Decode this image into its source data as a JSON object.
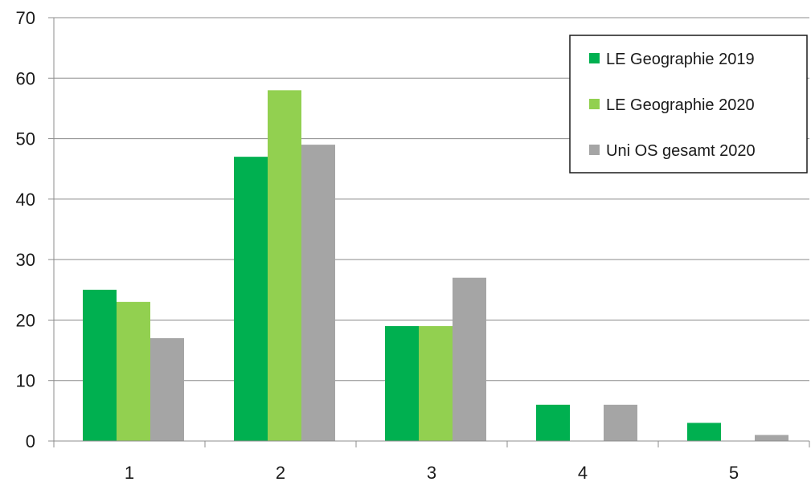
{
  "chart_data": {
    "type": "bar",
    "categories": [
      "1",
      "2",
      "3",
      "4",
      "5"
    ],
    "series": [
      {
        "name": "LE Geographie 2019",
        "color": "#00b050",
        "values": [
          25,
          47,
          19,
          6,
          3
        ]
      },
      {
        "name": "LE Geographie 2020",
        "color": "#92d050",
        "values": [
          23,
          58,
          19,
          0,
          0
        ]
      },
      {
        "name": "Uni OS gesamt 2020",
        "color": "#a5a5a5",
        "values": [
          17,
          49,
          27,
          6,
          1
        ]
      }
    ],
    "ylim": [
      0,
      70
    ],
    "yticks": [
      0,
      10,
      20,
      30,
      40,
      50,
      60,
      70
    ],
    "grid": true,
    "legend_position": "top-right",
    "gridline_color": "#8c8c8c",
    "axis_color": "#8c8c8c"
  }
}
